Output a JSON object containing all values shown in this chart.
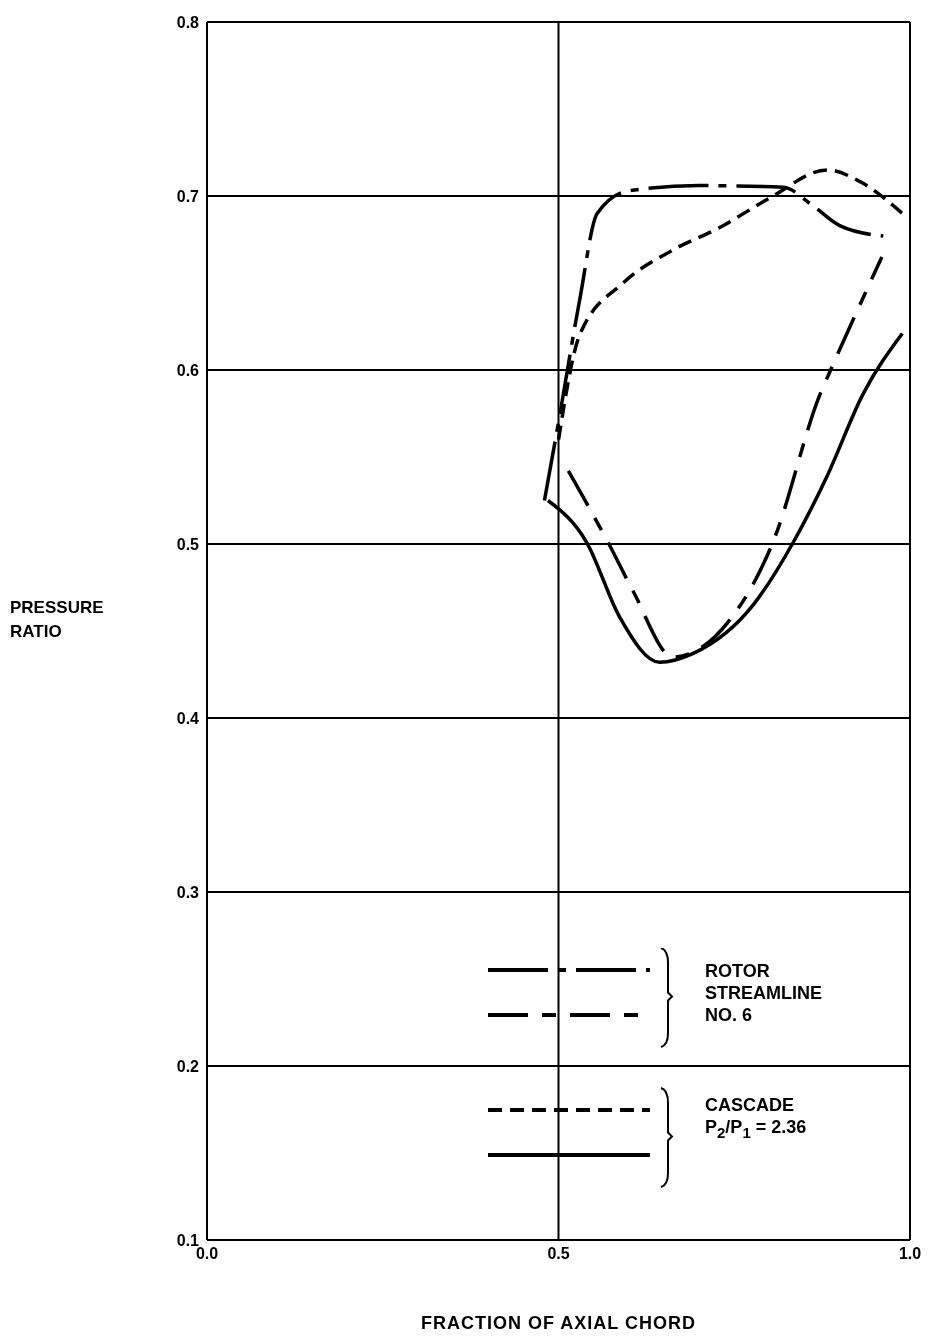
{
  "chart_data": {
    "type": "line",
    "xlabel": "FRACTION OF AXIAL CHORD",
    "ylabel": "PRESSURE\nRATIO",
    "xlim": [
      0,
      1
    ],
    "xticks": [
      {
        "value": 0,
        "label": "0.0"
      },
      0.5,
      {
        "value": 1,
        "label": "1.0"
      }
    ],
    "ylim": [
      0.1,
      0.8
    ],
    "yticks": [
      0.1,
      0.2,
      0.3,
      0.4,
      0.5,
      0.6,
      0.7,
      0.8
    ],
    "grid": true,
    "series": [
      {
        "line_style": "dashdot",
        "color": "#000000",
        "x": [
          0.48,
          0.5,
          0.53,
          0.555,
          0.6,
          0.7,
          0.82,
          0.86,
          0.9,
          0.962
        ],
        "values": [
          0.525,
          0.57,
          0.64,
          0.69,
          0.703,
          0.706,
          0.705,
          0.695,
          0.683,
          0.677
        ]
      },
      {
        "line_style": "longdash",
        "color": "#000000",
        "x": [
          0.514,
          0.573,
          0.606,
          0.663,
          0.754,
          0.777,
          0.805,
          0.872,
          0.886,
          0.96
        ],
        "values": [
          0.542,
          0.499,
          0.473,
          0.435,
          0.462,
          0.477,
          0.501,
          0.586,
          0.599,
          0.665
        ]
      },
      {
        "line_style": "dashed",
        "color": "#000000",
        "x": [
          0.5,
          0.53,
          0.592,
          0.663,
          0.73,
          0.801,
          0.882,
          0.93,
          0.989
        ],
        "values": [
          0.56,
          0.62,
          0.65,
          0.669,
          0.682,
          0.699,
          0.715,
          0.708,
          0.69
        ]
      },
      {
        "line_style": "solid",
        "color": "#000000",
        "x": [
          0.485,
          0.54,
          0.587,
          0.644,
          0.691,
          0.777,
          0.834,
          0.882,
          0.933,
          0.989
        ],
        "values": [
          0.525,
          0.501,
          0.458,
          0.432,
          0.437,
          0.465,
          0.501,
          0.539,
          0.586,
          0.621
        ]
      }
    ],
    "annotations": [
      "ROTOR\nSTREAMLINE\nNO. 6",
      "CASCADE\nP$_{2}$/P$_{1}$ = 2.36"
    ]
  }
}
